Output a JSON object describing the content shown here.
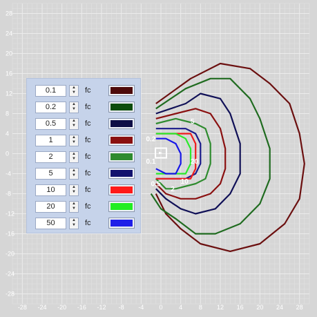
{
  "plot": {
    "x_ticks": [
      "-28",
      "-24",
      "-20",
      "-16",
      "-12",
      "-8",
      "-4",
      "0",
      "4",
      "8",
      "12",
      "16",
      "20",
      "24",
      "28"
    ],
    "y_ticks": [
      "28",
      "24",
      "20",
      "16",
      "12",
      "8",
      "4",
      "0",
      "-4",
      "-8",
      "-12",
      "-16",
      "-20",
      "-24",
      "-28"
    ],
    "xlim": [
      -30,
      30
    ],
    "ylim": [
      -30,
      30
    ],
    "contour_labels": [
      "0.2",
      "5",
      "0.1",
      "20",
      "10",
      "0.5",
      "2"
    ],
    "contours": [
      {
        "level": "0.1",
        "color": "#6b0f0f",
        "points": [
          [
            -1,
            10
          ],
          [
            6,
            15
          ],
          [
            12,
            18
          ],
          [
            18,
            17
          ],
          [
            22,
            14
          ],
          [
            26,
            10
          ],
          [
            28,
            4
          ],
          [
            29,
            -2
          ],
          [
            28,
            -9
          ],
          [
            25,
            -14
          ],
          [
            20,
            -18
          ],
          [
            14,
            -19.5
          ],
          [
            8,
            -18
          ],
          [
            4,
            -15
          ],
          [
            1,
            -12
          ],
          [
            -1,
            -8
          ]
        ]
      },
      {
        "level": "0.2",
        "color": "#1f6b1f",
        "points": [
          [
            -1,
            9
          ],
          [
            5,
            13
          ],
          [
            10,
            15
          ],
          [
            14,
            15
          ],
          [
            18,
            11
          ],
          [
            20,
            7
          ],
          [
            22,
            1
          ],
          [
            22,
            -5
          ],
          [
            20,
            -10
          ],
          [
            16,
            -14
          ],
          [
            11,
            -16
          ],
          [
            7,
            -16
          ],
          [
            3,
            -13
          ],
          [
            0,
            -11
          ],
          [
            -2,
            -8
          ]
        ]
      },
      {
        "level": "0.5",
        "color": "#101057",
        "points": [
          [
            -1,
            8
          ],
          [
            5,
            10
          ],
          [
            8,
            12
          ],
          [
            12,
            11
          ],
          [
            14,
            8
          ],
          [
            16,
            2
          ],
          [
            16,
            -4
          ],
          [
            14,
            -8
          ],
          [
            11,
            -11
          ],
          [
            7,
            -12
          ],
          [
            4,
            -11
          ],
          [
            1,
            -9
          ],
          [
            -1,
            -7
          ]
        ]
      },
      {
        "level": "1",
        "color": "#8a1010",
        "points": [
          [
            -1,
            7
          ],
          [
            3,
            8
          ],
          [
            7,
            9
          ],
          [
            10,
            8
          ],
          [
            12,
            5
          ],
          [
            13,
            1
          ],
          [
            13,
            -3
          ],
          [
            12,
            -6
          ],
          [
            10,
            -8
          ],
          [
            7,
            -9
          ],
          [
            4,
            -9
          ],
          [
            1,
            -8
          ],
          [
            -1,
            -6
          ]
        ]
      },
      {
        "level": "2",
        "color": "#2e8b2e",
        "points": [
          [
            -1,
            6
          ],
          [
            3,
            7
          ],
          [
            7,
            6
          ],
          [
            9,
            5
          ],
          [
            10,
            2
          ],
          [
            10,
            -2
          ],
          [
            9,
            -5
          ],
          [
            7,
            -6
          ],
          [
            3,
            -7
          ],
          [
            1,
            -7
          ],
          [
            -1,
            -5
          ]
        ]
      },
      {
        "level": "5",
        "color": "#1a1a8a",
        "points": [
          [
            -1,
            5
          ],
          [
            2,
            5
          ],
          [
            5,
            5
          ],
          [
            7,
            4
          ],
          [
            8,
            2
          ],
          [
            8,
            -2
          ],
          [
            7,
            -4
          ],
          [
            5,
            -5
          ],
          [
            2,
            -5
          ],
          [
            -1,
            -5
          ]
        ]
      },
      {
        "level": "10",
        "color": "#ee1c1c",
        "points": [
          [
            -1,
            4
          ],
          [
            3,
            4
          ],
          [
            6,
            4
          ],
          [
            7,
            2
          ],
          [
            7,
            -3
          ],
          [
            6,
            -5
          ],
          [
            3,
            -5
          ],
          [
            -1,
            -5
          ]
        ]
      },
      {
        "level": "20",
        "color": "#2bea2b",
        "points": [
          [
            -1,
            4
          ],
          [
            3,
            4
          ],
          [
            5,
            3
          ],
          [
            6,
            1
          ],
          [
            6,
            -2
          ],
          [
            5,
            -4
          ],
          [
            3,
            -4
          ],
          [
            -1,
            -4
          ]
        ]
      },
      {
        "level": "50",
        "color": "#1717e8",
        "points": [
          [
            -1,
            3
          ],
          [
            1,
            3
          ],
          [
            3,
            2
          ],
          [
            4,
            0
          ],
          [
            4,
            -2
          ],
          [
            3,
            -4
          ],
          [
            1,
            -4
          ],
          [
            -1,
            -3
          ]
        ]
      }
    ]
  },
  "legend": {
    "unit": "fc",
    "rows": [
      {
        "value": "0.1",
        "color": "#4d0a0a"
      },
      {
        "value": "0.2",
        "color": "#0d4d0d"
      },
      {
        "value": "0.5",
        "color": "#0d0d45"
      },
      {
        "value": "1",
        "color": "#8a1010"
      },
      {
        "value": "2",
        "color": "#2e8b2e"
      },
      {
        "value": "5",
        "color": "#12126e"
      },
      {
        "value": "10",
        "color": "#ff1a1a"
      },
      {
        "value": "20",
        "color": "#22ee22"
      },
      {
        "value": "50",
        "color": "#1e1ee8"
      }
    ]
  }
}
